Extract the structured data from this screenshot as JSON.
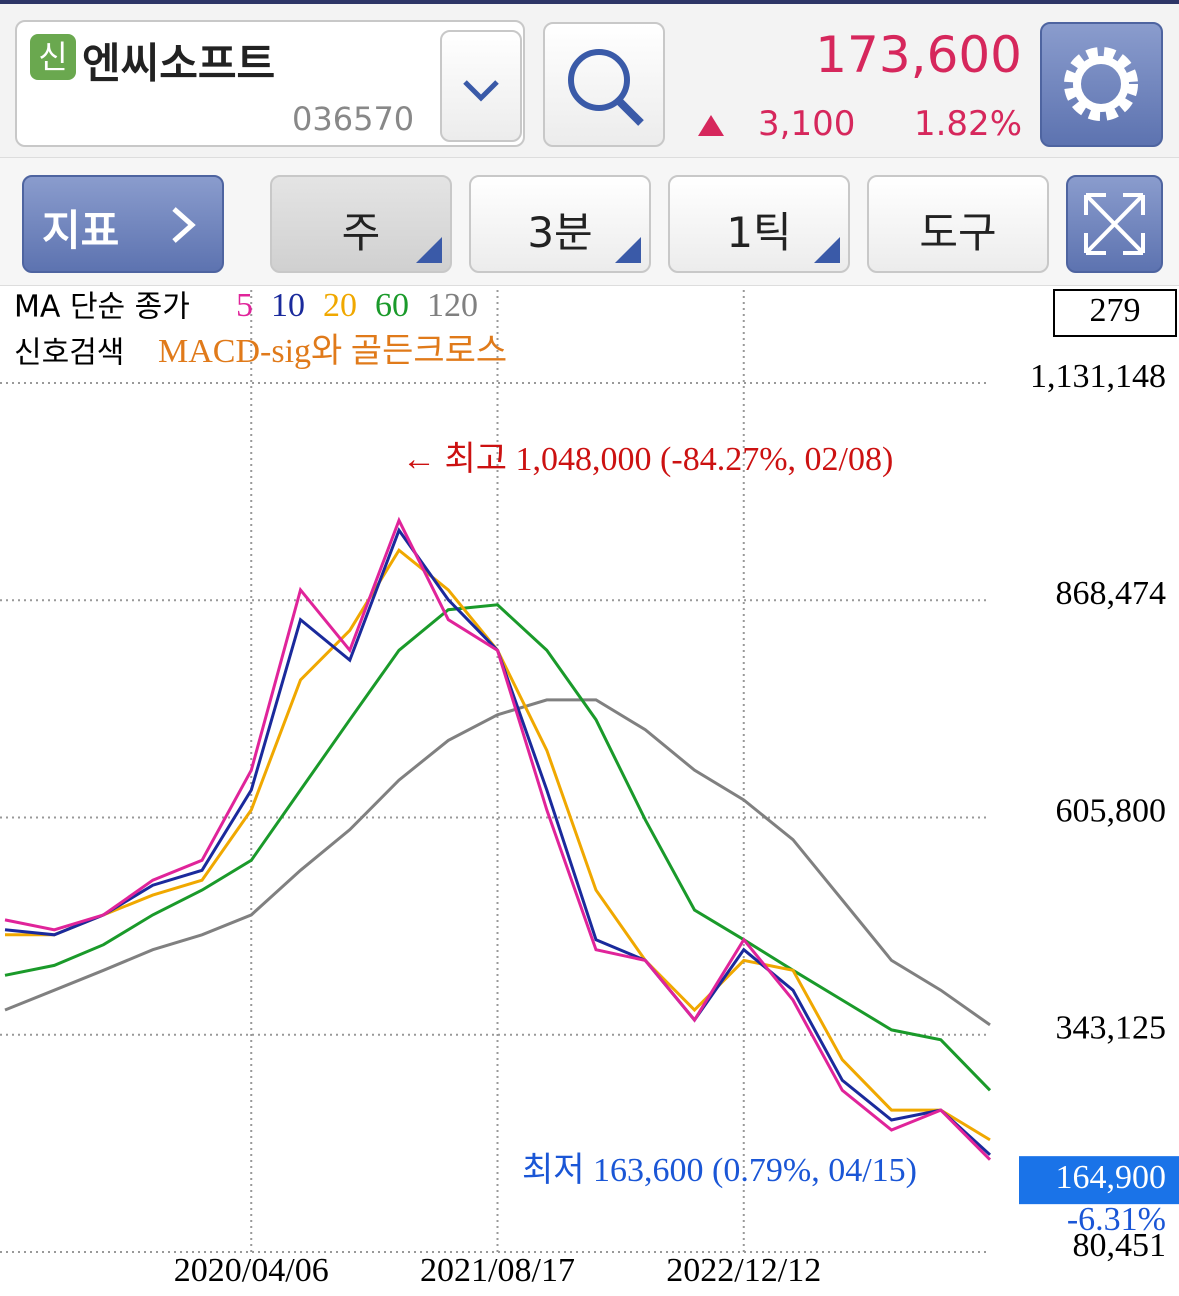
{
  "header": {
    "badge": "신",
    "stock_name": "엔씨소프트",
    "stock_code": "036570",
    "price": "173,600",
    "change": "3,100",
    "change_rate": "1.82%"
  },
  "toolbar": {
    "indicator_button": "지표",
    "buttons": [
      "주",
      "3분",
      "1틱",
      "도구"
    ]
  },
  "chart_data": {
    "type": "line",
    "legend_title": "MA 단순 종가",
    "signal_title": "신호검색",
    "signal_name": "MACD-sig와 골든크로스",
    "counter": "279",
    "high_label": "← 최고 1,048,000 (-84.27%, 02/08)",
    "low_label": "최저 163,600 (0.79%, 04/15)",
    "current_price": {
      "value": 164900,
      "label": "164,900"
    },
    "current_change": "-6.31%",
    "categories": [
      null,
      null,
      null,
      null,
      null,
      "2020/04/06",
      null,
      null,
      null,
      null,
      "2021/08/17",
      null,
      null,
      null,
      null,
      "2022/12/12",
      null,
      null,
      null,
      null,
      null
    ],
    "series": [
      {
        "name": "5",
        "color": "#e0249a",
        "values": [
          482000,
          470000,
          488000,
          530000,
          554000,
          663000,
          881000,
          808000,
          965000,
          845000,
          808000,
          615000,
          446000,
          433000,
          361000,
          458000,
          385000,
          276000,
          228000,
          252000,
          192000
        ]
      },
      {
        "name": "10",
        "color": "#1a2a9c",
        "values": [
          470000,
          464000,
          488000,
          524000,
          542000,
          639000,
          845000,
          796000,
          953000,
          869000,
          808000,
          639000,
          458000,
          433000,
          361000,
          446000,
          397000,
          288000,
          240000,
          252000,
          198000
        ]
      },
      {
        "name": "20",
        "color": "#f0a800",
        "values": [
          464000,
          464000,
          488000,
          512000,
          530000,
          615000,
          772000,
          832000,
          929000,
          881000,
          808000,
          687000,
          518000,
          433000,
          373000,
          433000,
          421000,
          313000,
          252000,
          252000,
          216000
        ]
      },
      {
        "name": "60",
        "color": "#1a9a2a",
        "values": [
          415000,
          427000,
          452000,
          488000,
          518000,
          554000,
          639000,
          724000,
          808000,
          857000,
          863000,
          808000,
          724000,
          603000,
          494000,
          458000,
          421000,
          385000,
          349000,
          337000,
          276000
        ]
      },
      {
        "name": "120",
        "color": "#808080",
        "values": [
          373000,
          397000,
          421000,
          446000,
          464000,
          488000,
          542000,
          591000,
          651000,
          699000,
          730000,
          748000,
          748000,
          712000,
          663000,
          627000,
          579000,
          506000,
          433000,
          397000,
          355000
        ]
      }
    ],
    "ylim": [
      80451,
      1131148
    ],
    "yticks": [
      {
        "value": 80451,
        "label": "80,451"
      },
      {
        "value": 343125,
        "label": "343,125"
      },
      {
        "value": 605800,
        "label": "605,800"
      },
      {
        "value": 868474,
        "label": "868,474"
      },
      {
        "value": 1131148,
        "label": "1,131,148"
      }
    ],
    "grid": true
  }
}
